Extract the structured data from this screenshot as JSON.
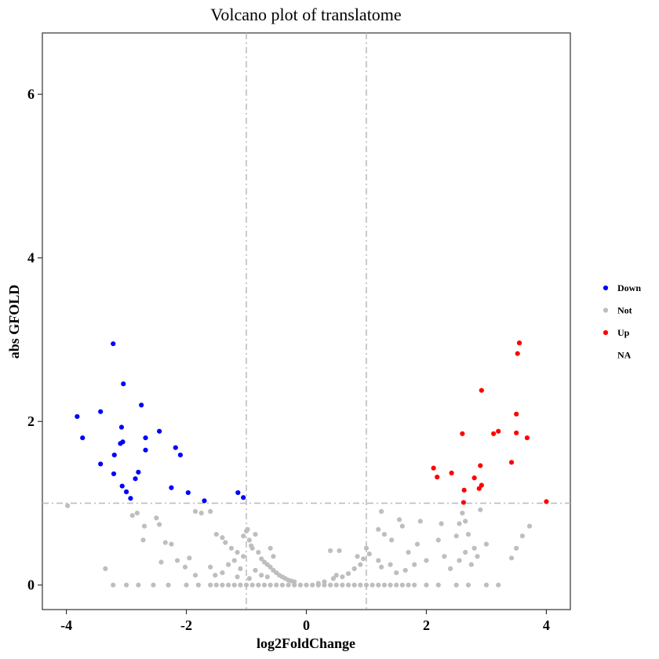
{
  "chart_data": {
    "type": "scatter",
    "title": "Volcano plot of translatome",
    "xlabel": "log2FoldChange",
    "ylabel": "abs GFOLD",
    "xlim": [
      -4.4,
      4.4
    ],
    "ylim": [
      -0.3,
      6.75
    ],
    "x_ticks": [
      -4,
      -2,
      0,
      2,
      4
    ],
    "x_tick_labels": [
      "-4",
      "-2",
      "0",
      "2",
      "4"
    ],
    "y_ticks": [
      0,
      2,
      4,
      6
    ],
    "y_tick_labels": [
      "0",
      "2",
      "4",
      "6"
    ],
    "grid": false,
    "thresholds": {
      "x": [
        -1,
        1
      ],
      "y": 1
    },
    "threshold_color": "#BEBEBE",
    "legend_position": "right",
    "legend": [
      {
        "label": "Down",
        "color": "#0000FF"
      },
      {
        "label": "Not",
        "color": "#BEBEBE"
      },
      {
        "label": "Up",
        "color": "#FF0000"
      },
      {
        "label": "NA",
        "color": null
      }
    ],
    "series": [
      {
        "name": "Down",
        "color": "#0000FF",
        "points": [
          [
            -3.22,
            2.95
          ],
          [
            -3.05,
            2.46
          ],
          [
            -2.75,
            2.2
          ],
          [
            -3.82,
            2.06
          ],
          [
            -3.43,
            2.12
          ],
          [
            -3.08,
            1.93
          ],
          [
            -2.45,
            1.88
          ],
          [
            -3.73,
            1.8
          ],
          [
            -2.68,
            1.8
          ],
          [
            -2.18,
            1.68
          ],
          [
            -3.06,
            1.75
          ],
          [
            -3.1,
            1.73
          ],
          [
            -2.68,
            1.65
          ],
          [
            -3.2,
            1.59
          ],
          [
            -2.1,
            1.59
          ],
          [
            -3.43,
            1.48
          ],
          [
            -2.8,
            1.38
          ],
          [
            -3.21,
            1.36
          ],
          [
            -2.85,
            1.3
          ],
          [
            -3.07,
            1.21
          ],
          [
            -2.25,
            1.19
          ],
          [
            -3.0,
            1.14
          ],
          [
            -1.97,
            1.13
          ],
          [
            -2.93,
            1.06
          ],
          [
            -1.7,
            1.03
          ],
          [
            -1.14,
            1.13
          ],
          [
            -1.05,
            1.07
          ]
        ]
      },
      {
        "name": "Up",
        "color": "#FF0000",
        "points": [
          [
            3.55,
            2.96
          ],
          [
            3.52,
            2.83
          ],
          [
            2.92,
            2.38
          ],
          [
            3.5,
            2.09
          ],
          [
            3.2,
            1.88
          ],
          [
            3.12,
            1.85
          ],
          [
            3.5,
            1.86
          ],
          [
            3.68,
            1.8
          ],
          [
            2.6,
            1.85
          ],
          [
            3.42,
            1.5
          ],
          [
            2.9,
            1.46
          ],
          [
            2.12,
            1.43
          ],
          [
            2.42,
            1.37
          ],
          [
            2.18,
            1.32
          ],
          [
            2.8,
            1.31
          ],
          [
            2.92,
            1.22
          ],
          [
            2.88,
            1.18
          ],
          [
            2.63,
            1.16
          ],
          [
            2.62,
            1.01
          ],
          [
            4.0,
            1.02
          ]
        ]
      },
      {
        "name": "Not",
        "color": "#BEBEBE",
        "points": [
          [
            -3.98,
            0.97
          ],
          [
            -3.35,
            0.2
          ],
          [
            -3.22,
            0.0
          ],
          [
            -3.0,
            0.0
          ],
          [
            -2.8,
            0.0
          ],
          [
            -2.55,
            0.0
          ],
          [
            -2.3,
            0.0
          ],
          [
            -2.0,
            0.0
          ],
          [
            -1.8,
            0.0
          ],
          [
            -1.6,
            0.0
          ],
          [
            -1.5,
            0.0
          ],
          [
            -1.4,
            0.0
          ],
          [
            -1.3,
            0.0
          ],
          [
            -1.2,
            0.0
          ],
          [
            -1.1,
            0.0
          ],
          [
            -1.0,
            0.0
          ],
          [
            -0.9,
            0.0
          ],
          [
            -0.8,
            0.0
          ],
          [
            -0.7,
            0.0
          ],
          [
            -0.6,
            0.0
          ],
          [
            -0.5,
            0.0
          ],
          [
            -0.4,
            0.0
          ],
          [
            -0.3,
            0.0
          ],
          [
            -0.2,
            0.0
          ],
          [
            -0.1,
            0.0
          ],
          [
            0.0,
            0.0
          ],
          [
            0.1,
            0.0
          ],
          [
            0.2,
            0.0
          ],
          [
            0.3,
            0.0
          ],
          [
            0.4,
            0.0
          ],
          [
            0.5,
            0.0
          ],
          [
            0.6,
            0.0
          ],
          [
            0.7,
            0.0
          ],
          [
            0.8,
            0.0
          ],
          [
            0.9,
            0.0
          ],
          [
            1.0,
            0.0
          ],
          [
            1.1,
            0.0
          ],
          [
            1.2,
            0.0
          ],
          [
            1.3,
            0.0
          ],
          [
            1.4,
            0.0
          ],
          [
            1.5,
            0.0
          ],
          [
            1.6,
            0.0
          ],
          [
            1.7,
            0.0
          ],
          [
            1.8,
            0.0
          ],
          [
            2.0,
            0.0
          ],
          [
            2.2,
            0.0
          ],
          [
            2.5,
            0.0
          ],
          [
            2.7,
            0.0
          ],
          [
            3.0,
            0.0
          ],
          [
            3.2,
            0.0
          ],
          [
            -2.9,
            0.85
          ],
          [
            -2.82,
            0.88
          ],
          [
            -2.5,
            0.82
          ],
          [
            -2.45,
            0.74
          ],
          [
            -2.7,
            0.72
          ],
          [
            -2.72,
            0.55
          ],
          [
            -2.35,
            0.52
          ],
          [
            -2.25,
            0.5
          ],
          [
            -2.42,
            0.28
          ],
          [
            -2.15,
            0.3
          ],
          [
            -2.02,
            0.22
          ],
          [
            -1.95,
            0.33
          ],
          [
            -1.85,
            0.12
          ],
          [
            -1.6,
            0.22
          ],
          [
            -1.52,
            0.12
          ],
          [
            -1.75,
            0.88
          ],
          [
            -1.85,
            0.9
          ],
          [
            -1.6,
            0.9
          ],
          [
            -1.5,
            0.62
          ],
          [
            -1.4,
            0.58
          ],
          [
            -1.35,
            0.52
          ],
          [
            -1.25,
            0.45
          ],
          [
            -1.15,
            0.4
          ],
          [
            -1.05,
            0.35
          ],
          [
            -0.95,
            0.55
          ],
          [
            -0.9,
            0.45
          ],
          [
            -0.85,
            0.62
          ],
          [
            -0.8,
            0.4
          ],
          [
            -0.75,
            0.32
          ],
          [
            -0.7,
            0.28
          ],
          [
            -0.65,
            0.25
          ],
          [
            -0.6,
            0.22
          ],
          [
            -0.55,
            0.18
          ],
          [
            -0.5,
            0.15
          ],
          [
            -0.45,
            0.12
          ],
          [
            -0.4,
            0.1
          ],
          [
            -0.35,
            0.08
          ],
          [
            -0.3,
            0.06
          ],
          [
            -0.25,
            0.05
          ],
          [
            -0.2,
            0.04
          ],
          [
            -1.0,
            0.66
          ],
          [
            -0.98,
            0.68
          ],
          [
            -1.05,
            0.6
          ],
          [
            -0.92,
            0.48
          ],
          [
            -1.2,
            0.3
          ],
          [
            -1.3,
            0.25
          ],
          [
            -1.1,
            0.2
          ],
          [
            -0.85,
            0.18
          ],
          [
            -0.75,
            0.12
          ],
          [
            -0.65,
            0.1
          ],
          [
            -0.95,
            0.08
          ],
          [
            -1.15,
            0.1
          ],
          [
            -1.4,
            0.15
          ],
          [
            -0.55,
            0.35
          ],
          [
            -0.6,
            0.45
          ],
          [
            0.2,
            0.02
          ],
          [
            0.3,
            0.04
          ],
          [
            0.45,
            0.08
          ],
          [
            0.5,
            0.12
          ],
          [
            0.6,
            0.1
          ],
          [
            0.7,
            0.14
          ],
          [
            0.8,
            0.2
          ],
          [
            0.9,
            0.25
          ],
          [
            0.95,
            0.32
          ],
          [
            1.05,
            0.38
          ],
          [
            0.4,
            0.42
          ],
          [
            0.55,
            0.42
          ],
          [
            1.0,
            0.45
          ],
          [
            0.85,
            0.35
          ],
          [
            1.2,
            0.3
          ],
          [
            1.25,
            0.22
          ],
          [
            1.4,
            0.25
          ],
          [
            1.5,
            0.15
          ],
          [
            1.65,
            0.18
          ],
          [
            1.8,
            0.25
          ],
          [
            1.25,
            0.9
          ],
          [
            1.2,
            0.68
          ],
          [
            1.3,
            0.62
          ],
          [
            1.42,
            0.55
          ],
          [
            1.55,
            0.8
          ],
          [
            1.6,
            0.72
          ],
          [
            1.9,
            0.78
          ],
          [
            1.7,
            0.4
          ],
          [
            1.85,
            0.5
          ],
          [
            2.0,
            0.3
          ],
          [
            2.2,
            0.55
          ],
          [
            2.25,
            0.75
          ],
          [
            2.3,
            0.35
          ],
          [
            2.4,
            0.2
          ],
          [
            2.5,
            0.6
          ],
          [
            2.55,
            0.75
          ],
          [
            2.6,
            0.88
          ],
          [
            2.65,
            0.78
          ],
          [
            2.7,
            0.62
          ],
          [
            2.8,
            0.45
          ],
          [
            2.85,
            0.35
          ],
          [
            2.75,
            0.25
          ],
          [
            2.9,
            0.92
          ],
          [
            2.55,
            0.3
          ],
          [
            2.65,
            0.4
          ],
          [
            3.5,
            0.45
          ],
          [
            3.42,
            0.33
          ],
          [
            3.6,
            0.6
          ],
          [
            3.72,
            0.72
          ],
          [
            3.0,
            0.5
          ]
        ]
      }
    ]
  }
}
